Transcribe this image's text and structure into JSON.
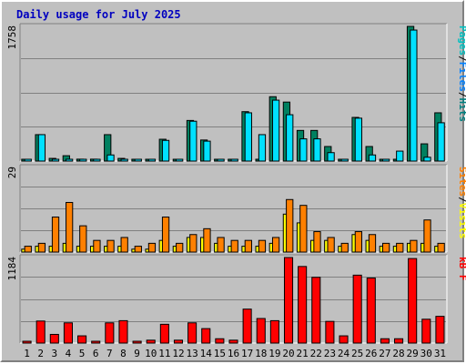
{
  "chart_data": {
    "type": "bar",
    "title": "Daily usage for July 2025",
    "days": [
      "1",
      "2",
      "3",
      "4",
      "5",
      "6",
      "7",
      "8",
      "9",
      "10",
      "11",
      "12",
      "13",
      "14",
      "15",
      "16",
      "17",
      "18",
      "19",
      "20",
      "21",
      "22",
      "23",
      "24",
      "25",
      "26",
      "27",
      "28",
      "29",
      "30",
      "31"
    ],
    "weekend_days": [
      "5",
      "6",
      "12",
      "13",
      "19",
      "20",
      "26",
      "27"
    ],
    "panels": [
      {
        "id": "hits-files-pages",
        "ymax_label": "1758",
        "ymax": 1758,
        "side_labels": [
          {
            "text": "Pages",
            "color": "#00c0c0"
          },
          {
            "text": "/",
            "color": "#000000"
          },
          {
            "text": "Files",
            "color": "#0080ff"
          },
          {
            "text": "/",
            "color": "#000000"
          },
          {
            "text": "Hits",
            "color": "#008080"
          }
        ],
        "series": [
          {
            "name": "Hits",
            "color": "#008060",
            "values": [
              5,
              345,
              35,
              70,
              25,
              25,
              345,
              35,
              5,
              5,
              285,
              5,
              530,
              275,
              5,
              5,
              645,
              5,
              840,
              770,
              400,
              400,
              190,
              5,
              570,
              190,
              5,
              5,
              1758,
              225,
              630
            ]
          },
          {
            "name": "Files",
            "color": "#00e0ff",
            "values": [
              5,
              345,
              20,
              20,
              15,
              15,
              80,
              15,
              5,
              5,
              270,
              5,
              520,
              260,
              5,
              5,
              630,
              345,
              795,
              605,
              290,
              290,
              110,
              5,
              560,
              80,
              5,
              130,
              1710,
              50,
              500
            ]
          }
        ]
      },
      {
        "id": "visits-sites",
        "ymax_label": "29",
        "ymax": 29,
        "side_labels": [
          {
            "text": "Sites",
            "color": "#ff8000"
          },
          {
            "text": "/",
            "color": "#000000"
          },
          {
            "text": "Visits",
            "color": "#ffff00"
          }
        ],
        "series": [
          {
            "name": "Visits",
            "color": "#ffff00",
            "values": [
              1,
              2,
              2,
              3,
              2,
              2,
              2,
              2,
              1,
              1,
              4,
              2,
              5,
              5,
              3,
              2,
              2,
              2,
              3,
              13,
              10,
              4,
              4,
              2,
              6,
              4,
              2,
              2,
              3,
              3,
              2
            ]
          },
          {
            "name": "Sites",
            "color": "#ff8000",
            "values": [
              2,
              3,
              12,
              17,
              9,
              4,
              4,
              5,
              2,
              3,
              12,
              3,
              6,
              8,
              5,
              4,
              4,
              4,
              5,
              18,
              16,
              7,
              5,
              3,
              7,
              6,
              3,
              3,
              4,
              11,
              3
            ]
          }
        ]
      },
      {
        "id": "kbytes",
        "ymax_label": "1184",
        "ymax": 1184,
        "side_labels": [
          {
            "text": "kB F",
            "color": "#ff0000"
          }
        ],
        "series": [
          {
            "name": "kB F",
            "color": "#ff0000",
            "values": [
              20,
              305,
              120,
              280,
              100,
              20,
              280,
              310,
              20,
              40,
              260,
              40,
              280,
              200,
              60,
              40,
              470,
              340,
              310,
              1184,
              1060,
              910,
              300,
              100,
              940,
              900,
              60,
              60,
              1170,
              330,
              370
            ]
          }
        ]
      }
    ]
  }
}
